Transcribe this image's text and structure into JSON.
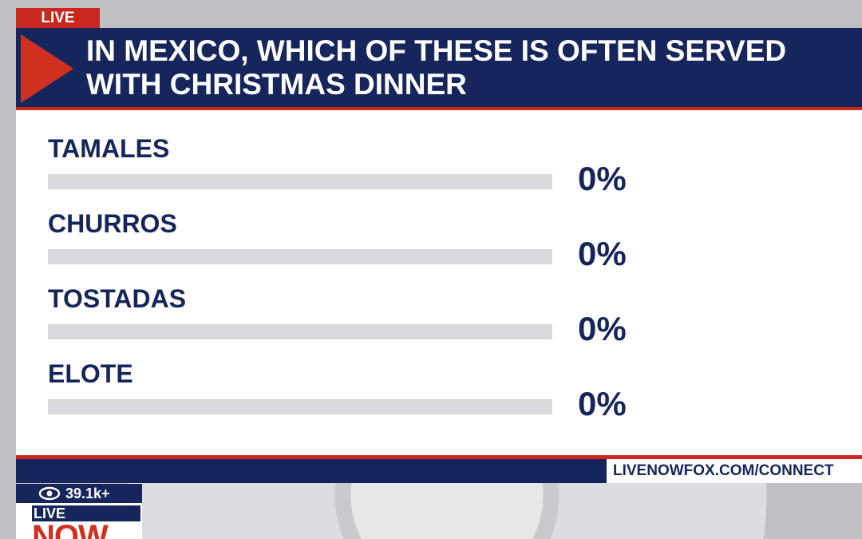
{
  "live_tag": "LIVE",
  "poll": {
    "question": "IN MEXICO, WHICH OF THESE IS OFTEN SERVED WITH CHRISTMAS DINNER",
    "options": [
      {
        "label": "TAMALES",
        "result": "0%"
      },
      {
        "label": "CHURROS",
        "result": "0%"
      },
      {
        "label": "TOSTADAS",
        "result": "0%"
      },
      {
        "label": "ELOTE",
        "result": "0%"
      }
    ]
  },
  "footer": {
    "url": "LIVENOWFOX.COM/CONNECT"
  },
  "badge": {
    "viewers": "39.1k+",
    "live": "LIVE",
    "now": "NOW"
  }
}
